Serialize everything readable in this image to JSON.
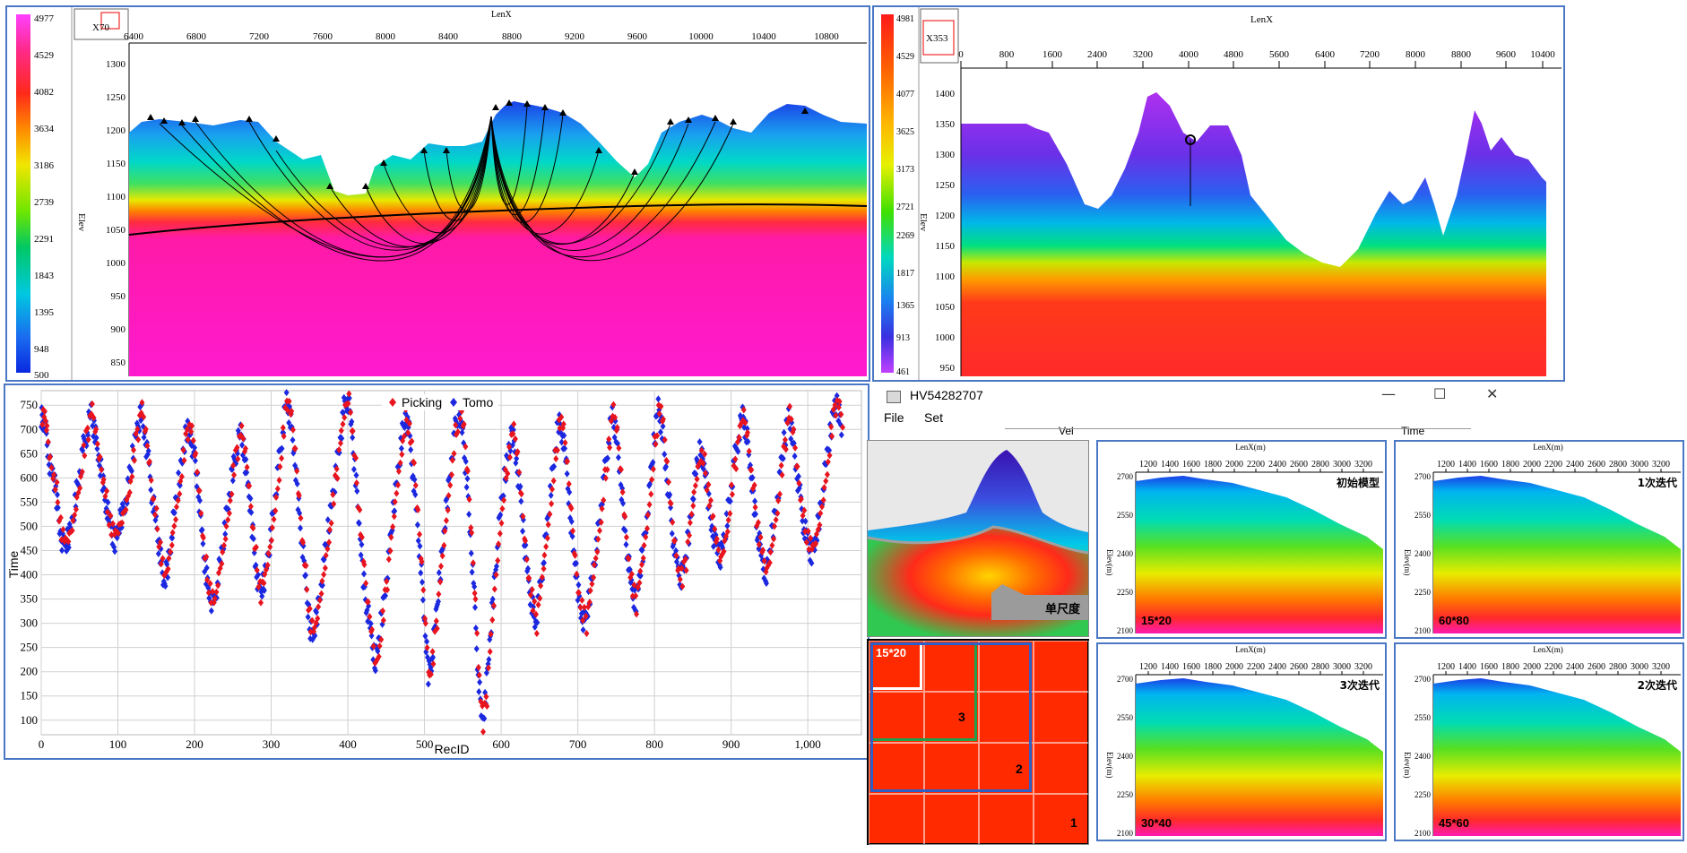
{
  "colors": {
    "frame_border": "#4a78c4",
    "picking": "#e8141e",
    "tomo": "#1c28e0",
    "grid_fill": "#ff2a00"
  },
  "panel_a": {
    "corner_label": "X70",
    "top_axis_label": "LenX",
    "left_axis_label": "Elev",
    "colorbar_ticks": [
      "4977",
      "4529",
      "4082",
      "3634",
      "3186",
      "2739",
      "2291",
      "1843",
      "1395",
      "948",
      "500"
    ],
    "x_ticks": [
      "6400",
      "6800",
      "7200",
      "7600",
      "8000",
      "8400",
      "8800",
      "9200",
      "9600",
      "10000",
      "10400",
      "10800"
    ],
    "y_ticks": [
      "1300",
      "1250",
      "1200",
      "1150",
      "1100",
      "1050",
      "1000",
      "950",
      "900",
      "850"
    ]
  },
  "panel_b": {
    "corner_label": "X353",
    "top_axis_label": "LenX",
    "left_axis_label": "Elev",
    "colorbar_ticks": [
      "4981",
      "4529",
      "4077",
      "3625",
      "3173",
      "2721",
      "2269",
      "1817",
      "1365",
      "913",
      "461"
    ],
    "x_ticks": [
      "0",
      "800",
      "1600",
      "2400",
      "3200",
      "4000",
      "4800",
      "5600",
      "6400",
      "7200",
      "8000",
      "8800",
      "9600",
      "10400"
    ],
    "y_ticks": [
      "1400",
      "1350",
      "1300",
      "1250",
      "1200",
      "1150",
      "1100",
      "1050",
      "1000",
      "950"
    ]
  },
  "chart_data": {
    "type": "scatter",
    "xlabel": "RecID",
    "ylabel": "Time",
    "legend_position": "top-center",
    "x_ticks": [
      "0",
      "100",
      "200",
      "300",
      "400",
      "500",
      "600",
      "700",
      "800",
      "900",
      "1,000"
    ],
    "y_ticks": [
      "750",
      "700",
      "650",
      "600",
      "550",
      "500",
      "450",
      "400",
      "350",
      "300",
      "250",
      "200",
      "150",
      "100"
    ],
    "xlim": [
      0,
      1070
    ],
    "ylim": [
      70,
      780
    ],
    "grid": true,
    "series": [
      {
        "name": "Picking",
        "color": "#e8141e"
      },
      {
        "name": "Tomo",
        "color": "#1c28e0"
      }
    ],
    "points": [
      [
        0,
        731
      ],
      [
        3,
        720
      ],
      [
        6,
        697
      ],
      [
        10,
        640
      ],
      [
        15,
        610
      ],
      [
        20,
        560
      ],
      [
        25,
        490
      ],
      [
        30,
        455
      ],
      [
        35,
        472
      ],
      [
        40,
        505
      ],
      [
        45,
        560
      ],
      [
        50,
        610
      ],
      [
        55,
        660
      ],
      [
        60,
        700
      ],
      [
        65,
        735
      ],
      [
        70,
        690
      ],
      [
        75,
        640
      ],
      [
        80,
        600
      ],
      [
        85,
        540
      ],
      [
        90,
        500
      ],
      [
        95,
        470
      ],
      [
        100,
        490
      ],
      [
        105,
        520
      ],
      [
        110,
        555
      ],
      [
        115,
        600
      ],
      [
        120,
        650
      ],
      [
        125,
        700
      ],
      [
        130,
        738
      ],
      [
        135,
        690
      ],
      [
        140,
        630
      ],
      [
        145,
        560
      ],
      [
        150,
        505
      ],
      [
        155,
        440
      ],
      [
        160,
        380
      ],
      [
        165,
        420
      ],
      [
        170,
        480
      ],
      [
        175,
        540
      ],
      [
        180,
        600
      ],
      [
        185,
        650
      ],
      [
        190,
        700
      ],
      [
        195,
        690
      ],
      [
        200,
        640
      ],
      [
        205,
        570
      ],
      [
        210,
        480
      ],
      [
        215,
        400
      ],
      [
        220,
        360
      ],
      [
        225,
        330
      ],
      [
        230,
        390
      ],
      [
        235,
        440
      ],
      [
        240,
        500
      ],
      [
        245,
        560
      ],
      [
        250,
        620
      ],
      [
        255,
        660
      ],
      [
        260,
        690
      ],
      [
        265,
        650
      ],
      [
        270,
        580
      ],
      [
        275,
        500
      ],
      [
        280,
        420
      ],
      [
        285,
        360
      ],
      [
        290,
        380
      ],
      [
        295,
        430
      ],
      [
        300,
        490
      ],
      [
        305,
        560
      ],
      [
        310,
        630
      ],
      [
        315,
        700
      ],
      [
        320,
        760
      ],
      [
        325,
        720
      ],
      [
        330,
        650
      ],
      [
        335,
        560
      ],
      [
        340,
        470
      ],
      [
        345,
        380
      ],
      [
        350,
        300
      ],
      [
        355,
        270
      ],
      [
        360,
        320
      ],
      [
        365,
        380
      ],
      [
        370,
        440
      ],
      [
        375,
        500
      ],
      [
        380,
        560
      ],
      [
        385,
        620
      ],
      [
        390,
        680
      ],
      [
        395,
        740
      ],
      [
        400,
        770
      ],
      [
        405,
        700
      ],
      [
        410,
        600
      ],
      [
        415,
        500
      ],
      [
        420,
        400
      ],
      [
        425,
        330
      ],
      [
        430,
        280
      ],
      [
        435,
        220
      ],
      [
        440,
        260
      ],
      [
        445,
        320
      ],
      [
        450,
        390
      ],
      [
        455,
        460
      ],
      [
        460,
        540
      ],
      [
        465,
        610
      ],
      [
        470,
        680
      ],
      [
        475,
        730
      ],
      [
        480,
        690
      ],
      [
        485,
        610
      ],
      [
        490,
        520
      ],
      [
        495,
        420
      ],
      [
        500,
        300
      ],
      [
        505,
        200
      ],
      [
        510,
        230
      ],
      [
        515,
        310
      ],
      [
        520,
        400
      ],
      [
        525,
        480
      ],
      [
        530,
        560
      ],
      [
        535,
        640
      ],
      [
        540,
        700
      ],
      [
        545,
        740
      ],
      [
        550,
        690
      ],
      [
        555,
        600
      ],
      [
        560,
        480
      ],
      [
        565,
        350
      ],
      [
        570,
        200
      ],
      [
        575,
        90
      ],
      [
        580,
        150
      ],
      [
        585,
        260
      ],
      [
        590,
        360
      ],
      [
        595,
        460
      ],
      [
        600,
        540
      ],
      [
        605,
        610
      ],
      [
        610,
        660
      ],
      [
        615,
        690
      ],
      [
        620,
        640
      ],
      [
        625,
        560
      ],
      [
        630,
        470
      ],
      [
        635,
        400
      ],
      [
        640,
        340
      ],
      [
        645,
        300
      ],
      [
        650,
        360
      ],
      [
        655,
        430
      ],
      [
        660,
        500
      ],
      [
        665,
        580
      ],
      [
        670,
        650
      ],
      [
        675,
        720
      ],
      [
        680,
        690
      ],
      [
        685,
        620
      ],
      [
        690,
        530
      ],
      [
        695,
        440
      ],
      [
        700,
        370
      ],
      [
        705,
        320
      ],
      [
        710,
        300
      ],
      [
        715,
        350
      ],
      [
        720,
        410
      ],
      [
        725,
        470
      ],
      [
        730,
        540
      ],
      [
        735,
        610
      ],
      [
        740,
        680
      ],
      [
        745,
        730
      ],
      [
        750,
        690
      ],
      [
        755,
        610
      ],
      [
        760,
        520
      ],
      [
        765,
        440
      ],
      [
        770,
        370
      ],
      [
        775,
        340
      ],
      [
        780,
        390
      ],
      [
        785,
        450
      ],
      [
        790,
        520
      ],
      [
        795,
        600
      ],
      [
        800,
        680
      ],
      [
        805,
        750
      ],
      [
        810,
        700
      ],
      [
        815,
        620
      ],
      [
        820,
        540
      ],
      [
        825,
        470
      ],
      [
        830,
        420
      ],
      [
        835,
        390
      ],
      [
        840,
        430
      ],
      [
        845,
        490
      ],
      [
        850,
        560
      ],
      [
        855,
        620
      ],
      [
        860,
        660
      ],
      [
        865,
        620
      ],
      [
        870,
        560
      ],
      [
        875,
        500
      ],
      [
        880,
        460
      ],
      [
        885,
        430
      ],
      [
        890,
        470
      ],
      [
        895,
        520
      ],
      [
        900,
        580
      ],
      [
        905,
        640
      ],
      [
        910,
        690
      ],
      [
        915,
        730
      ],
      [
        920,
        690
      ],
      [
        925,
        620
      ],
      [
        930,
        550
      ],
      [
        935,
        480
      ],
      [
        940,
        430
      ],
      [
        945,
        400
      ],
      [
        950,
        440
      ],
      [
        955,
        500
      ],
      [
        960,
        560
      ],
      [
        965,
        620
      ],
      [
        970,
        680
      ],
      [
        975,
        730
      ],
      [
        980,
        690
      ],
      [
        985,
        620
      ],
      [
        990,
        560
      ],
      [
        995,
        500
      ],
      [
        1000,
        470
      ],
      [
        1005,
        440
      ],
      [
        1010,
        470
      ],
      [
        1015,
        520
      ],
      [
        1020,
        580
      ],
      [
        1025,
        640
      ],
      [
        1030,
        700
      ],
      [
        1035,
        750
      ],
      [
        1040,
        740
      ],
      [
        1045,
        700
      ]
    ]
  },
  "vel_window": {
    "title": "HV54282707",
    "menu": [
      "File",
      "Set"
    ],
    "vel_label": "Vel",
    "time_label": "Time",
    "inset_tag": "单尺度",
    "grid_tag": "15*20",
    "grid_numbers": [
      "3",
      "2",
      "1"
    ]
  },
  "small_panels": [
    {
      "id": "p1",
      "method": "初始模型",
      "grid": "15*20"
    },
    {
      "id": "p2",
      "method": "1次迭代",
      "grid": "60*80"
    },
    {
      "id": "p3",
      "method": "3次迭代",
      "grid": "30*40"
    },
    {
      "id": "p4",
      "method": "2次迭代",
      "grid": "45*60"
    }
  ],
  "small_axes": {
    "top_label": "LenX(m)",
    "left_label": "Elev(m)",
    "x_ticks": [
      "1200",
      "1400",
      "1600",
      "1800",
      "2000",
      "2200",
      "2400",
      "2600",
      "2800",
      "3000",
      "3200"
    ],
    "y_ticks": [
      "2700",
      "2550",
      "2400",
      "2250",
      "2100"
    ]
  }
}
